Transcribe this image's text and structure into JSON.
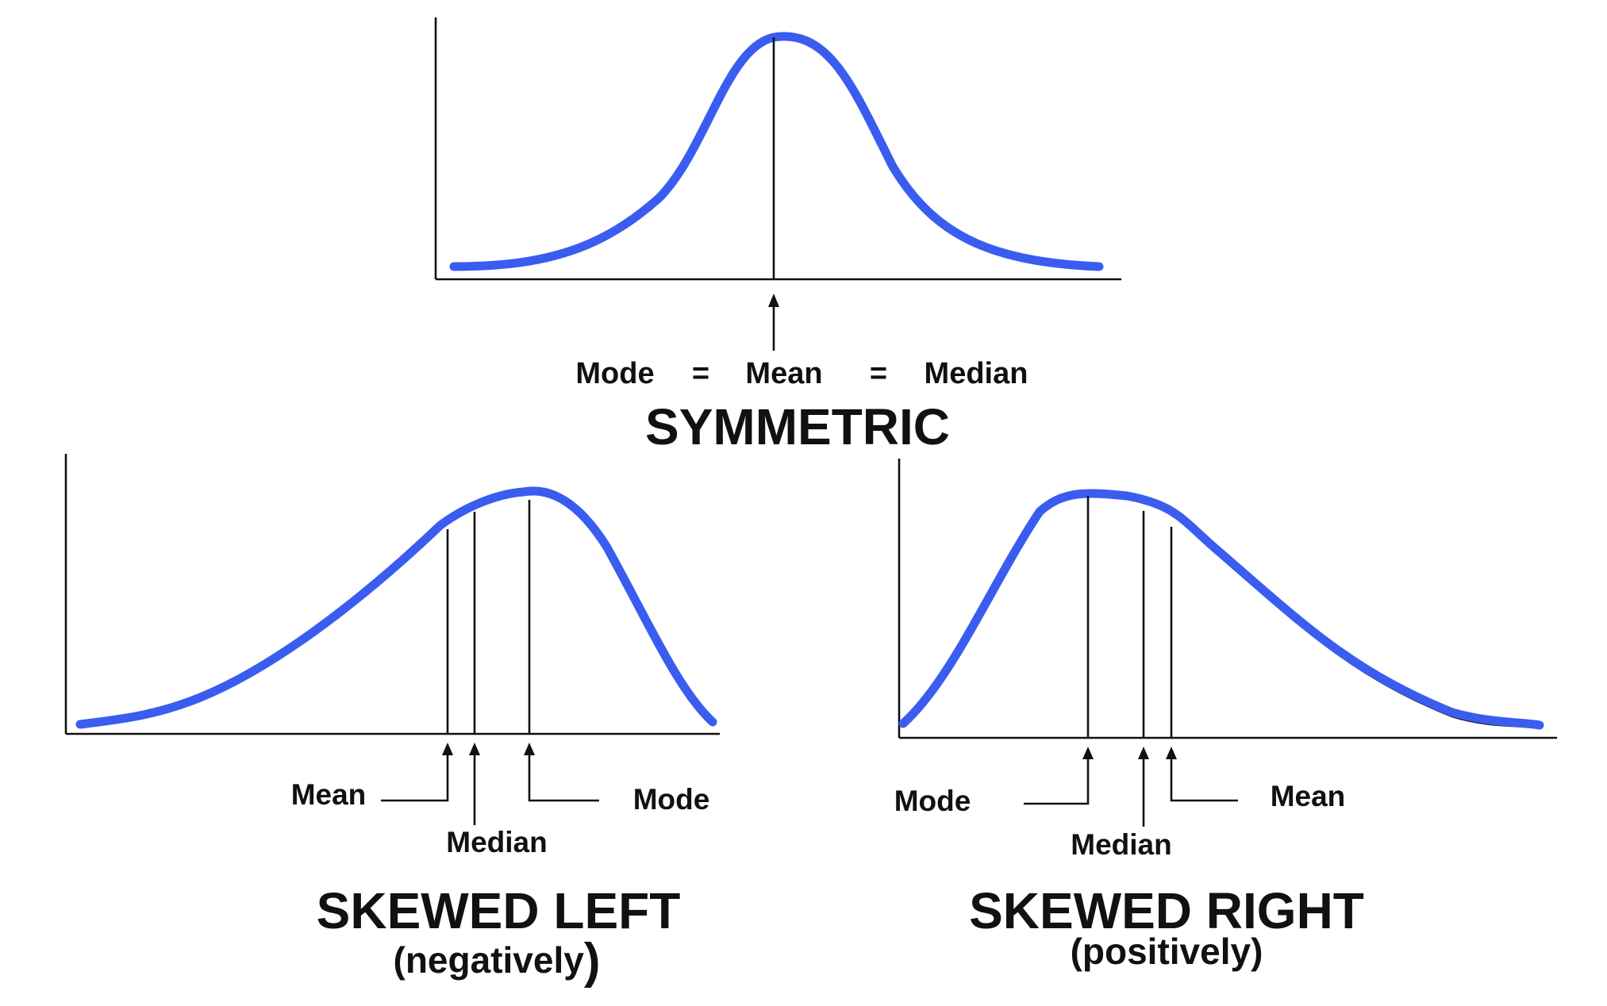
{
  "colors": {
    "curve": "#3a5df0",
    "ink": "#111111",
    "teal": "#139a96",
    "background": "#ffffff"
  },
  "symmetric": {
    "title": "SYMMETRIC",
    "label_mode": "Mode",
    "label_mean": "Mean",
    "label_median": "Median",
    "equals_1": "=",
    "equals_2": "="
  },
  "skewed_left": {
    "title": "SKEWED LEFT",
    "subtitle_open": "(negatively",
    "subtitle_close": ")",
    "label_mean": "Mean",
    "label_median": "Median",
    "label_mode": "Mode"
  },
  "skewed_right": {
    "title": "SKEWED RIGHT",
    "subtitle": "(positively)",
    "label_mode": "Mode",
    "label_median": "Median",
    "label_mean": "Mean"
  }
}
